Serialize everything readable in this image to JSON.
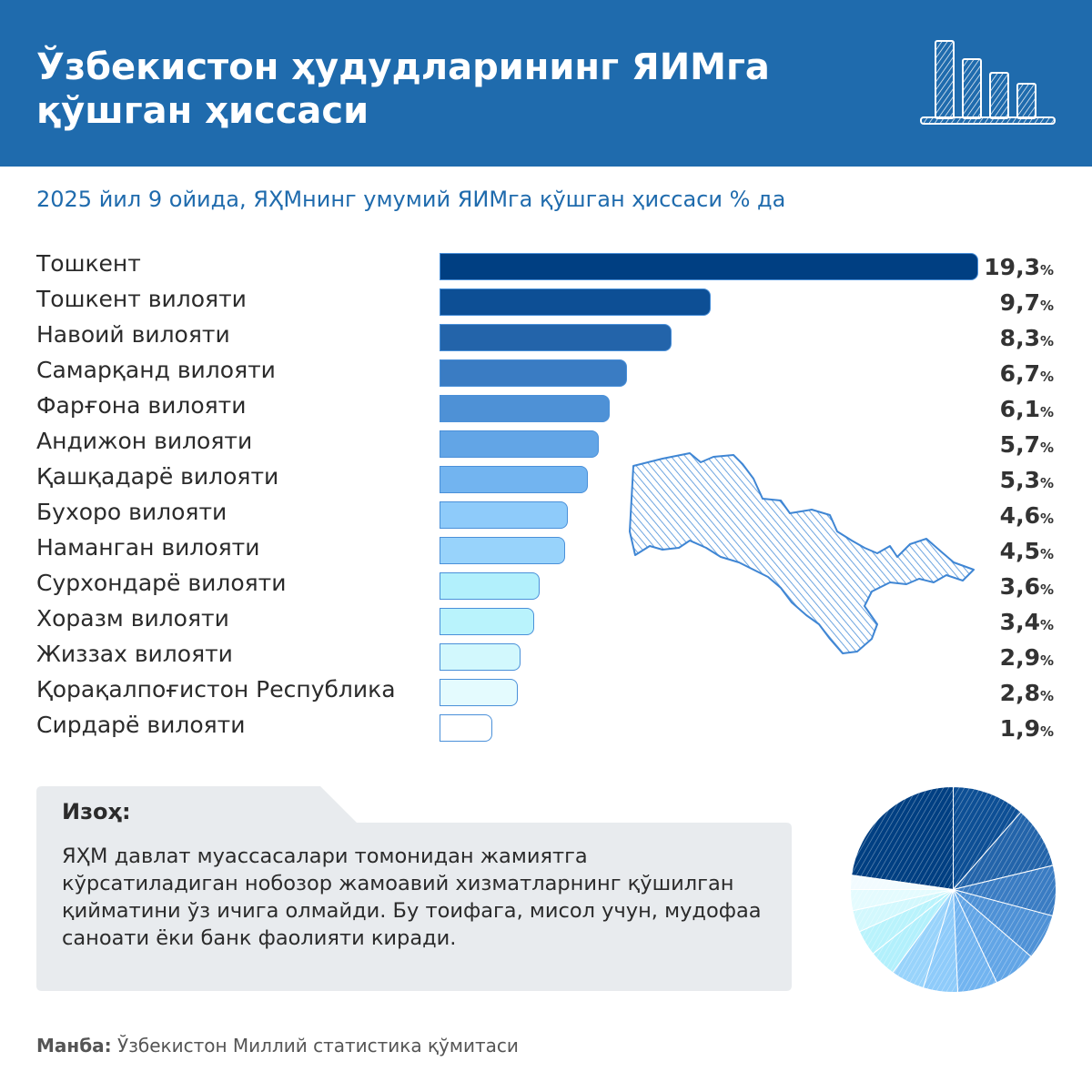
{
  "header": {
    "title_line1": "Ўзбекистон ҳудудларининг ЯИМга",
    "title_line2": "қўшган ҳиссаси",
    "icon": "bar-chart-icon"
  },
  "subtitle": "2025 йил 9 ойида, ЯҲМнинг умумий ЯИМга қўшган ҳиссаси % да",
  "chart_data": {
    "type": "bar",
    "orientation": "horizontal",
    "title": "Ўзбекистон ҳудудларининг ЯИМга қўшган ҳиссаси",
    "subtitle": "2025 йил 9 ойида, ЯҲМнинг умумий ЯИМга қўшган ҳиссаси % да",
    "categories": [
      "Тошкент",
      "Тошкент вилояти",
      "Навоий вилояти",
      "Самарқанд вилояти",
      "Фарғона вилояти",
      "Андижон вилояти",
      "Қашқадарё вилояти",
      "Бухоро вилояти",
      "Наманган вилояти",
      "Сурхондарё вилояти",
      "Хоразм вилояти",
      "Жиззах вилояти",
      "Қорақалпоғистон Республика",
      "Сирдарё вилояти"
    ],
    "values": [
      19.3,
      9.7,
      8.3,
      6.7,
      6.1,
      5.7,
      5.3,
      4.6,
      4.5,
      3.6,
      3.4,
      2.9,
      2.8,
      1.9
    ],
    "value_labels": [
      "19,3",
      "9,7",
      "8,3",
      "6,7",
      "6,1",
      "5,7",
      "5,3",
      "4,6",
      "4,5",
      "3,6",
      "3,4",
      "2,9",
      "2,8",
      "1,9"
    ],
    "unit": "%",
    "xlim": [
      0,
      19.3
    ],
    "grid": false,
    "legend": "none",
    "bar_colors": [
      "#003f82",
      "#0d4f95",
      "#2364aa",
      "#3a7cc3",
      "#4e91d6",
      "#62a5e6",
      "#72b4f0",
      "#8ecbfa",
      "#98d3fb",
      "#b2f0fc",
      "#b9f3fc",
      "#d2f8fd",
      "#e4fbfe",
      "#ffffff"
    ]
  },
  "note": {
    "title": "Изоҳ:",
    "text": "ЯҲМ давлат муассасалари томонидан жамиятга кўрсатиладиган нобозор жамоавий хизматларнинг қўшилган қийматини ўз ичига олмайди. Бу тоифага, мисол учун, мудофаа саноати ёки банк фаолияти киради."
  },
  "source": {
    "label": "Манба:",
    "text": "Ўзбекистон Миллий статистика қўмитаси"
  },
  "decorations": {
    "map": "uzbekistan-map-icon",
    "pie": "pie-chart-icon"
  },
  "colors": {
    "header": "#1f6bad",
    "accent": "#1f6bad",
    "note_bg": "#e8ebee"
  }
}
